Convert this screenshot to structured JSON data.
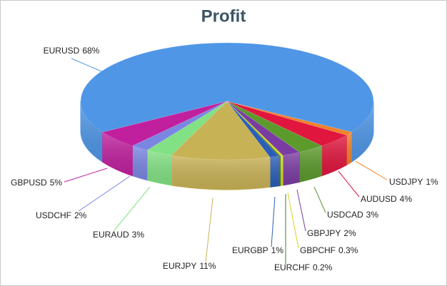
{
  "chart_data": {
    "type": "pie3d",
    "title": "Profit",
    "categories": [
      "EURUSD",
      "USDJPY",
      "AUDUSD",
      "USDCAD",
      "GBPJPY",
      "GBPCHF",
      "EURCHF",
      "EURGBP",
      "EURJPY",
      "EURAUD",
      "USDCHF",
      "GBPUSD"
    ],
    "values": [
      68,
      1,
      4,
      3,
      2,
      0.3,
      0.2,
      1,
      11,
      3,
      2,
      5
    ],
    "value_labels": [
      "68%",
      "1%",
      "4%",
      "3%",
      "2%",
      "0.3%",
      "0.2%",
      "1%",
      "11%",
      "3%",
      "2%",
      "5%"
    ],
    "colors": [
      "#4f96e6",
      "#f08028",
      "#e0163e",
      "#5c9a2c",
      "#7a3ca2",
      "#d8d422",
      "#3c7a34",
      "#2a5eb8",
      "#c8b256",
      "#82e184",
      "#7b86e2",
      "#c0209e"
    ]
  }
}
